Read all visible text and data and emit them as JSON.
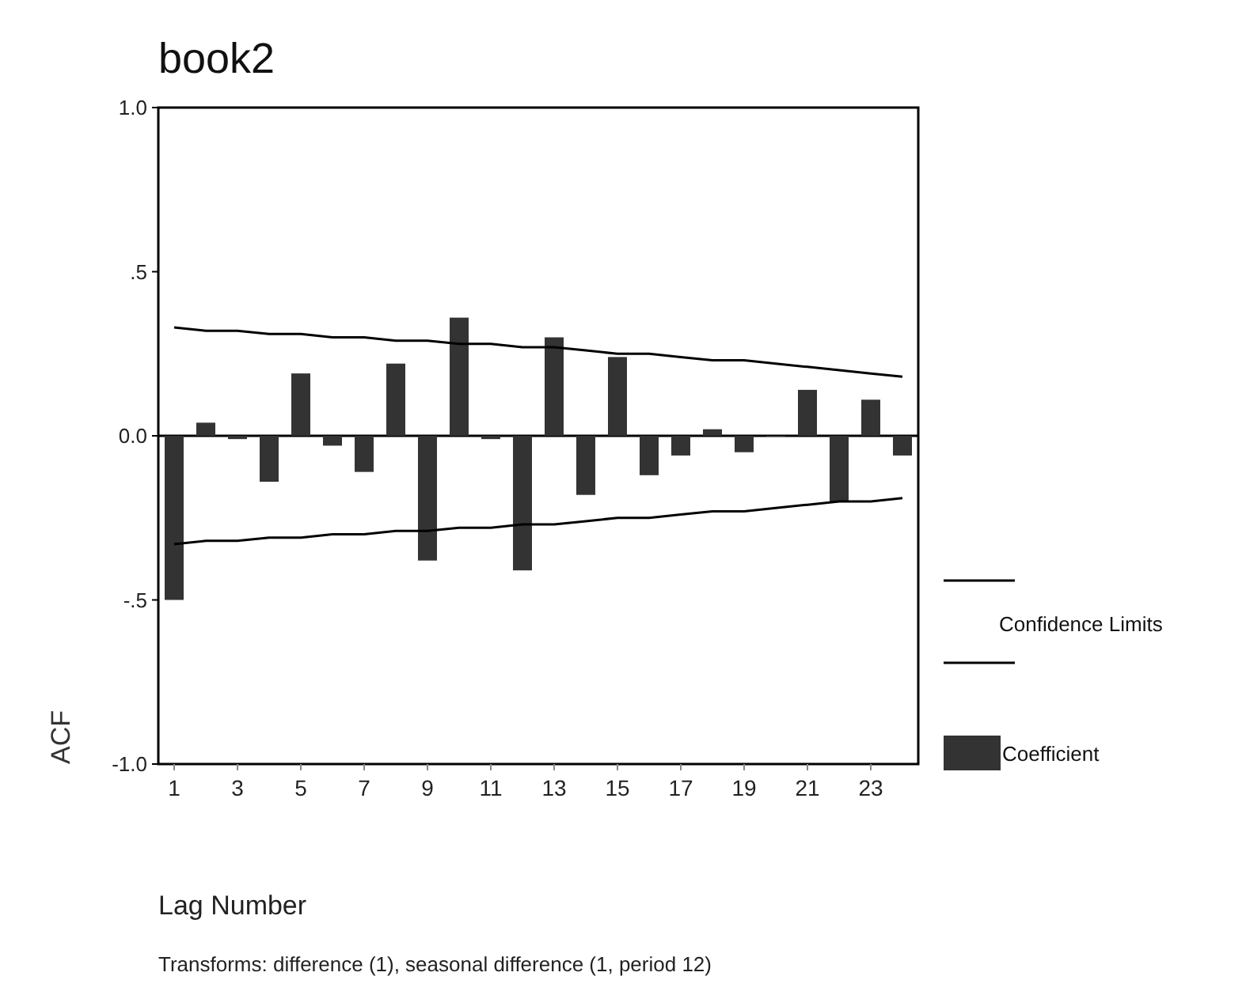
{
  "chart_data": {
    "type": "bar",
    "title": "book2",
    "xlabel": "Lag Number",
    "ylabel": "ACF",
    "x": [
      1,
      2,
      3,
      4,
      5,
      6,
      7,
      8,
      9,
      10,
      11,
      12,
      13,
      14,
      15,
      16,
      17,
      18,
      19,
      20,
      21,
      22,
      23,
      24
    ],
    "xlim": [
      0.5,
      24.5
    ],
    "xticks": [
      1,
      3,
      5,
      7,
      9,
      11,
      13,
      15,
      17,
      19,
      21,
      23
    ],
    "series": [
      {
        "name": "Coefficient",
        "color": "#333333",
        "values": [
          -0.5,
          0.04,
          -0.01,
          -0.14,
          0.19,
          -0.03,
          -0.11,
          0.22,
          -0.38,
          0.36,
          -0.01,
          -0.41,
          0.3,
          -0.18,
          0.24,
          -0.12,
          -0.06,
          0.02,
          -0.05,
          0,
          0.14,
          -0.2,
          0.11,
          -0.06
        ]
      },
      {
        "name": "Confidence Limits",
        "type": "line",
        "color": "#000000",
        "values": [
          0.33,
          0.32,
          0.32,
          0.31,
          0.31,
          0.3,
          0.3,
          0.29,
          0.29,
          0.28,
          0.28,
          0.27,
          0.27,
          0.26,
          0.25,
          0.25,
          0.24,
          0.23,
          0.23,
          0.22,
          0.21,
          0.2,
          0.19,
          0.18
        ]
      },
      {
        "type": "line",
        "color": "#000000",
        "values": [
          -0.33,
          -0.32,
          -0.32,
          -0.31,
          -0.31,
          -0.3,
          -0.3,
          -0.29,
          -0.29,
          -0.28,
          -0.28,
          -0.27,
          -0.27,
          -0.26,
          -0.25,
          -0.25,
          -0.24,
          -0.23,
          -0.23,
          -0.22,
          -0.21,
          -0.2,
          -0.2,
          -0.19
        ]
      }
    ],
    "ylim": [
      -1,
      1
    ],
    "yticks": [
      {
        "value": -1,
        "label": "-1.0"
      },
      {
        "value": -0.5,
        "label": "-.5"
      },
      {
        "value": 0,
        "label": "0.0"
      },
      {
        "value": 0.5,
        "label": ".5"
      },
      {
        "value": 1,
        "label": "1.0"
      }
    ],
    "legend": "right",
    "marker": "none",
    "line_style": "solid",
    "annotations": [
      "Transforms: difference (1), seasonal difference (1, period 12)"
    ]
  }
}
